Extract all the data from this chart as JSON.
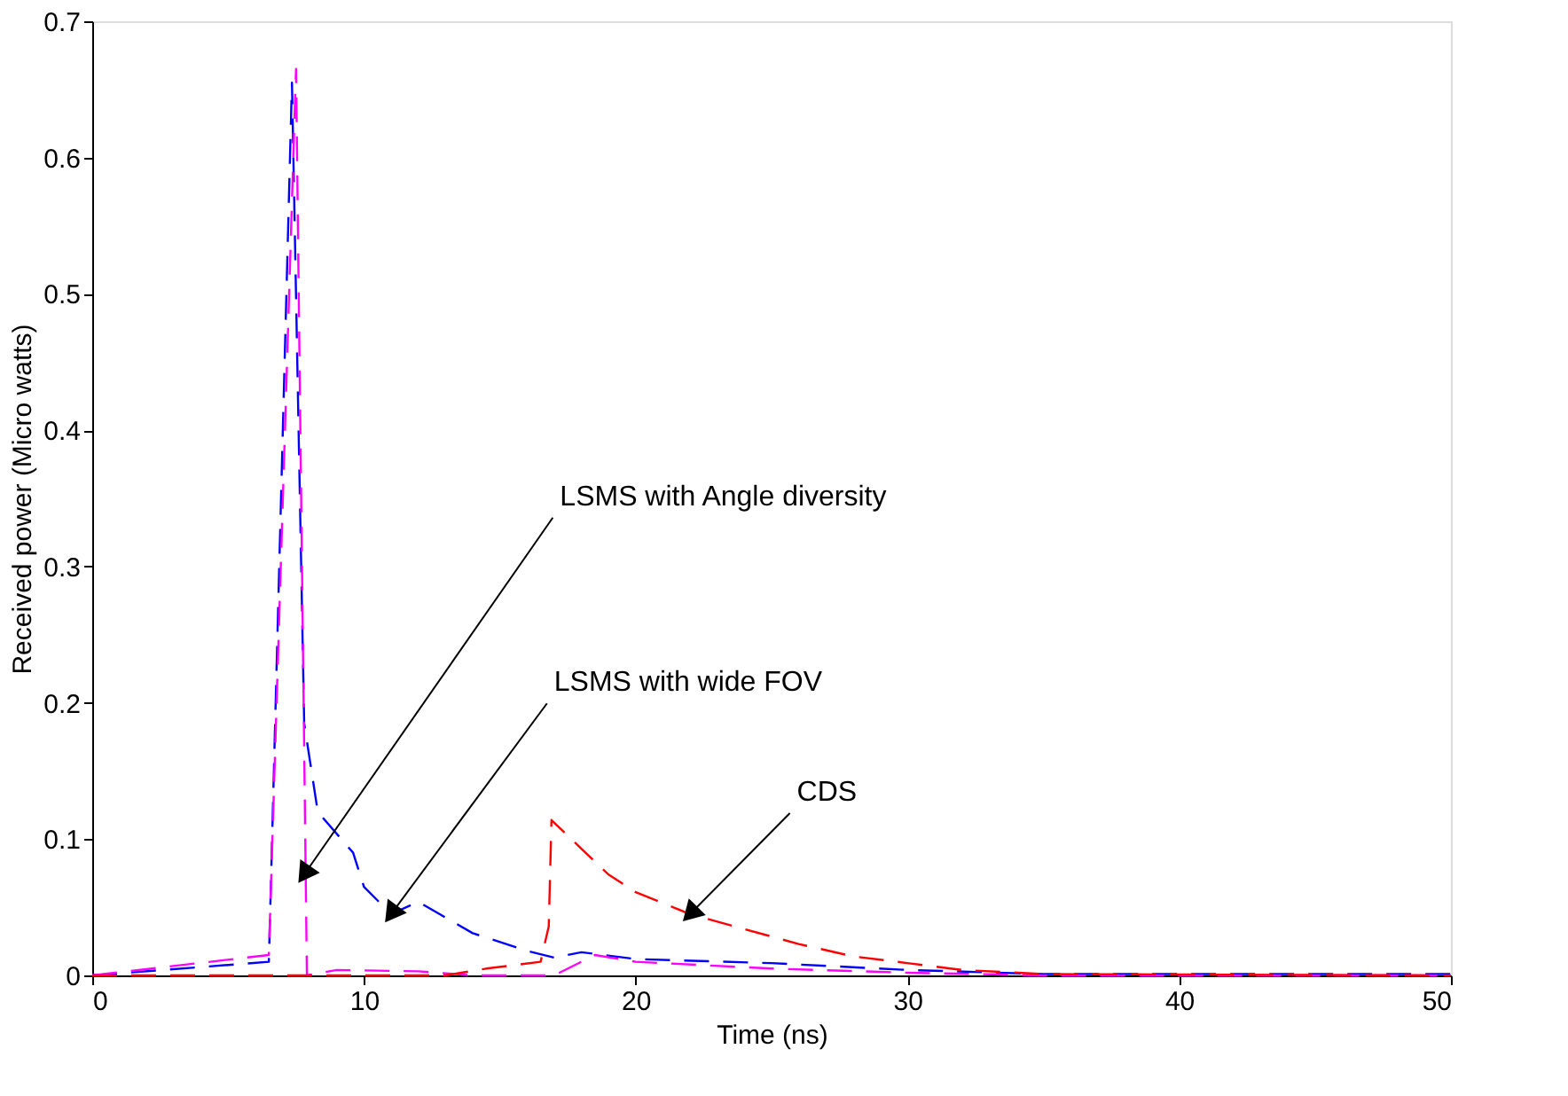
{
  "chart_data": {
    "type": "line",
    "xlabel": "Time (ns)",
    "ylabel": "Received power (Micro watts)",
    "xlim": [
      0,
      50
    ],
    "ylim": [
      0,
      0.7
    ],
    "xticks": [
      0,
      10,
      20,
      30,
      40,
      50
    ],
    "yticks": [
      0,
      0.1,
      0.2,
      0.3,
      0.4,
      0.5,
      0.6,
      0.7
    ],
    "grid": false,
    "line_style": "dashed",
    "marker": "none",
    "series": [
      {
        "color": "#0000ff",
        "x": [
          0,
          6.5,
          7.35,
          7.8,
          8.3,
          9.6,
          10,
          11,
          12,
          14,
          16,
          17,
          18,
          20,
          25,
          30,
          35,
          50
        ],
        "values": [
          0,
          0.01,
          0.655,
          0.185,
          0.12,
          0.09,
          0.065,
          0.045,
          0.054,
          0.031,
          0.018,
          0.013,
          0.017,
          0.012,
          0.009,
          0.004,
          0.001,
          0.001
        ]
      },
      {
        "color": "#ff00ff",
        "x": [
          0,
          6.5,
          7.5,
          7.9,
          9,
          12,
          14,
          17,
          18.5,
          20,
          25,
          30,
          35,
          50
        ],
        "values": [
          0,
          0.015,
          0.665,
          0,
          0.004,
          0.003,
          0,
          0,
          0.015,
          0.01,
          0.005,
          0.002,
          0,
          0
        ]
      },
      {
        "color": "#ff0000",
        "x": [
          0,
          13,
          14.5,
          16.5,
          16.8,
          16.9,
          18,
          19,
          20,
          22,
          24,
          26,
          28,
          30,
          32,
          35,
          50
        ],
        "values": [
          0,
          0,
          0.005,
          0.01,
          0.036,
          0.114,
          0.093,
          0.074,
          0.061,
          0.045,
          0.034,
          0.023,
          0.014,
          0.009,
          0.004,
          0.001,
          0
        ]
      }
    ],
    "annotations": [
      {
        "text": "LSMS with Angle diversity",
        "x": 7.8,
        "y": 0.074
      },
      {
        "text": "LSMS with wide FOV",
        "x": 11,
        "y": 0.045
      },
      {
        "text": "CDS",
        "x": 22,
        "y": 0.045
      }
    ]
  }
}
